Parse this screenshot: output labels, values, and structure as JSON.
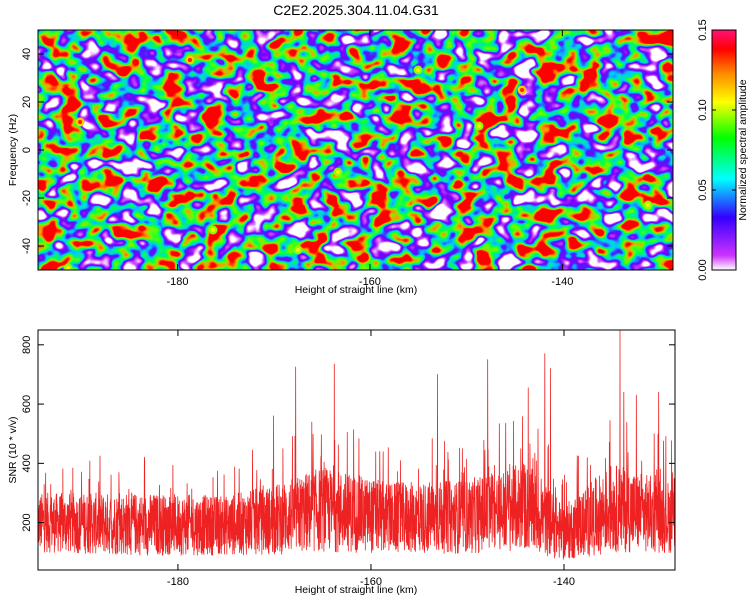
{
  "title": "C2E2.2025.304.11.04.G31",
  "chart_data": [
    {
      "type": "heatmap",
      "xlabel": "Height of straight line (km)",
      "ylabel": "Frequency (Hz)",
      "xlim": [
        -194.5,
        -128.5
      ],
      "ylim": [
        -50,
        50
      ],
      "xticks": [
        -180,
        -160,
        -140
      ],
      "xtick_labels": [
        "-180",
        "-160",
        "-140"
      ],
      "yticks": [
        -40,
        -20,
        0,
        20,
        40
      ],
      "ytick_labels": [
        "-40",
        "-20",
        "0",
        "20",
        "40"
      ],
      "colorbar": {
        "label": "Normalized spectral amplitude",
        "range": [
          0,
          0.15
        ],
        "ticks": [
          0,
          0.05,
          0.1,
          0.15
        ],
        "tick_labels": [
          "0.00",
          "0.05",
          "0.10",
          "0.15"
        ],
        "colors": [
          "#ffffff",
          "#cc33ff",
          "#3300ff",
          "#00ffff",
          "#00ff00",
          "#ffff00",
          "#ff8800",
          "#ff0000",
          "#ff1177"
        ]
      }
    },
    {
      "type": "line",
      "xlabel": "Height of straight line (km)",
      "ylabel": "SNR (10 * v/v)",
      "xlim": [
        -194.5,
        -128.5
      ],
      "ylim": [
        40,
        850
      ],
      "xticks": [
        -180,
        -160,
        -140
      ],
      "xtick_labels": [
        "-180",
        "-160",
        "-140"
      ],
      "yticks": [
        200,
        400,
        600,
        800
      ],
      "ytick_labels": [
        "200",
        "400",
        "600",
        "800"
      ],
      "color": "#ee2222",
      "profile": [
        {
          "x": -194.5,
          "baseline": 200,
          "spread": 80
        },
        {
          "x": -185,
          "baseline": 195,
          "spread": 85
        },
        {
          "x": -175,
          "baseline": 190,
          "spread": 80
        },
        {
          "x": -170,
          "baseline": 210,
          "spread": 95
        },
        {
          "x": -165,
          "baseline": 245,
          "spread": 115
        },
        {
          "x": -158,
          "baseline": 215,
          "spread": 95
        },
        {
          "x": -150,
          "baseline": 220,
          "spread": 100
        },
        {
          "x": -144,
          "baseline": 255,
          "spread": 120
        },
        {
          "x": -140,
          "baseline": 165,
          "spread": 75
        },
        {
          "x": -135,
          "baseline": 250,
          "spread": 120
        },
        {
          "x": -128.5,
          "baseline": 215,
          "spread": 95
        }
      ],
      "peaks": [
        {
          "x": -167.8,
          "y": 725
        },
        {
          "x": -163.8,
          "y": 735
        },
        {
          "x": -153.1,
          "y": 700
        },
        {
          "x": -147.9,
          "y": 750
        },
        {
          "x": -142.0,
          "y": 770
        },
        {
          "x": -141.4,
          "y": 720
        },
        {
          "x": -134.2,
          "y": 850
        },
        {
          "x": -133.8,
          "y": 640
        },
        {
          "x": -132.5,
          "y": 630
        },
        {
          "x": -143.7,
          "y": 655
        },
        {
          "x": -170.1,
          "y": 560
        },
        {
          "x": -130.2,
          "y": 640
        }
      ]
    }
  ]
}
